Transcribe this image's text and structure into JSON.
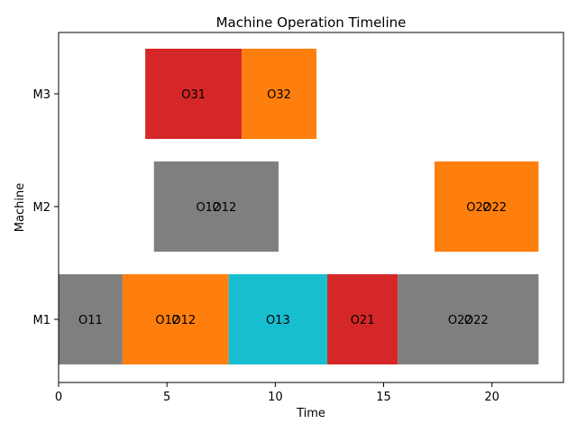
{
  "chart_data": {
    "type": "gantt",
    "title": "Machine Operation Timeline",
    "xlabel": "Time",
    "ylabel": "Machine",
    "xlim": [
      0,
      23.3
    ],
    "xticks": [
      0,
      5,
      10,
      15,
      20
    ],
    "categories": [
      "M1",
      "M2",
      "M3"
    ],
    "grid": false,
    "colors": {
      "gray": "#7f7f7f",
      "orange": "#ff7f0e",
      "cyan": "#17becf",
      "red": "#d62728"
    },
    "bars": [
      {
        "machine": "M1",
        "start": 0.0,
        "end": 2.95,
        "color": "gray",
        "labels": [
          "O11"
        ]
      },
      {
        "machine": "M1",
        "start": 2.95,
        "end": 7.85,
        "color": "orange",
        "labels": [
          "O12",
          "O12"
        ]
      },
      {
        "machine": "M1",
        "start": 7.85,
        "end": 12.4,
        "color": "cyan",
        "labels": [
          "O13"
        ]
      },
      {
        "machine": "M1",
        "start": 12.4,
        "end": 15.65,
        "color": "red",
        "labels": [
          "O21"
        ]
      },
      {
        "machine": "M1",
        "start": 15.65,
        "end": 22.15,
        "color": "gray",
        "labels": [
          "O22",
          "O22"
        ]
      },
      {
        "machine": "M2",
        "start": 4.4,
        "end": 10.15,
        "color": "gray",
        "labels": [
          "O12",
          "O12"
        ]
      },
      {
        "machine": "M2",
        "start": 17.35,
        "end": 22.15,
        "color": "orange",
        "labels": [
          "O22",
          "O22"
        ]
      },
      {
        "machine": "M3",
        "start": 4.0,
        "end": 8.45,
        "color": "red",
        "labels": [
          "O31"
        ]
      },
      {
        "machine": "M3",
        "start": 8.45,
        "end": 11.9,
        "color": "orange",
        "labels": [
          "O32"
        ]
      }
    ]
  }
}
